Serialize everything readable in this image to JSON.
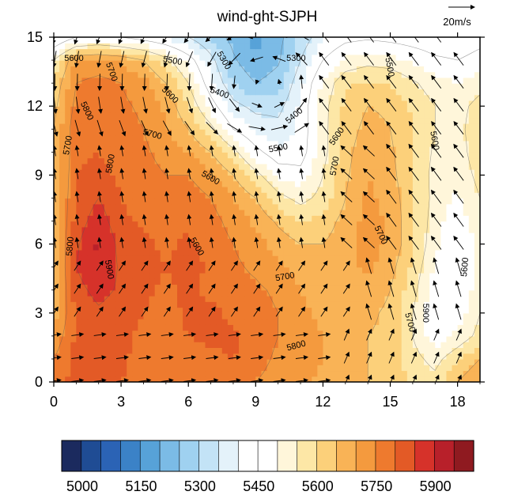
{
  "chart_data": {
    "type": "heatmap",
    "title": "wind-ght-SJPH",
    "xlabel": "",
    "ylabel": "",
    "xlim": [
      0,
      19
    ],
    "ylim": [
      0,
      15
    ],
    "x_ticks": [
      "0",
      "3",
      "6",
      "9",
      "12",
      "15",
      "18"
    ],
    "y_ticks": [
      "0",
      "3",
      "6",
      "9",
      "12",
      "15"
    ],
    "reference_vector": {
      "label": "20m/s",
      "magnitude": 20
    },
    "colorbar": {
      "levels": [
        5000,
        5050,
        5100,
        5150,
        5200,
        5250,
        5300,
        5350,
        5400,
        5450,
        5500,
        5550,
        5600,
        5650,
        5700,
        5750,
        5800,
        5850,
        5900,
        5950,
        6000
      ],
      "colors": [
        "#1b2a5e",
        "#1f4c94",
        "#2b63b5",
        "#3b82c7",
        "#57a2d8",
        "#7bbbe6",
        "#9fd1f0",
        "#c3e3f6",
        "#e4f2fa",
        "#ffffff",
        "#ffffff",
        "#fff6da",
        "#fde7a6",
        "#fcd07a",
        "#f9b356",
        "#f49a3e",
        "#ee7a2e",
        "#e35a26",
        "#d6322a",
        "#b8202a",
        "#8f1a20"
      ],
      "labels": [
        "5000",
        "5150",
        "5300",
        "5450",
        "5600",
        "5750",
        "5900"
      ]
    },
    "contour_labels": [
      "5300",
      "5400",
      "5500",
      "5600",
      "5700",
      "5800",
      "5900"
    ],
    "grid_field": [
      [
        5820,
        5870,
        5880,
        5850,
        5820,
        5800,
        5800,
        5820,
        5830,
        5800,
        5780,
        5760,
        5740,
        5720,
        5700,
        5680,
        5640,
        5620,
        5700,
        5760
      ],
      [
        5800,
        5870,
        5890,
        5860,
        5830,
        5810,
        5820,
        5840,
        5850,
        5820,
        5790,
        5770,
        5750,
        5720,
        5700,
        5680,
        5620,
        5580,
        5640,
        5700
      ],
      [
        5760,
        5860,
        5880,
        5860,
        5840,
        5820,
        5850,
        5860,
        5860,
        5830,
        5800,
        5780,
        5750,
        5720,
        5700,
        5690,
        5600,
        5520,
        5560,
        5620
      ],
      [
        5720,
        5860,
        5890,
        5870,
        5850,
        5830,
        5860,
        5860,
        5840,
        5820,
        5800,
        5760,
        5740,
        5720,
        5710,
        5690,
        5600,
        5500,
        5520,
        5600
      ],
      [
        5700,
        5880,
        5920,
        5890,
        5860,
        5840,
        5860,
        5840,
        5820,
        5810,
        5790,
        5750,
        5730,
        5730,
        5730,
        5700,
        5620,
        5520,
        5500,
        5580
      ],
      [
        5700,
        5900,
        5950,
        5890,
        5870,
        5850,
        5870,
        5840,
        5810,
        5790,
        5760,
        5730,
        5720,
        5740,
        5760,
        5720,
        5640,
        5540,
        5500,
        5560
      ],
      [
        5700,
        5890,
        5960,
        5880,
        5860,
        5840,
        5860,
        5830,
        5800,
        5770,
        5730,
        5700,
        5700,
        5730,
        5770,
        5740,
        5660,
        5560,
        5500,
        5560
      ],
      [
        5700,
        5870,
        5930,
        5860,
        5840,
        5830,
        5840,
        5820,
        5780,
        5740,
        5690,
        5650,
        5670,
        5720,
        5770,
        5740,
        5660,
        5570,
        5520,
        5580
      ],
      [
        5700,
        5860,
        5900,
        5850,
        5830,
        5820,
        5830,
        5800,
        5750,
        5700,
        5620,
        5580,
        5620,
        5700,
        5760,
        5730,
        5660,
        5580,
        5540,
        5600
      ],
      [
        5700,
        5850,
        5870,
        5840,
        5820,
        5800,
        5800,
        5760,
        5700,
        5620,
        5540,
        5520,
        5600,
        5690,
        5750,
        5720,
        5650,
        5580,
        5560,
        5620
      ],
      [
        5700,
        5840,
        5850,
        5830,
        5810,
        5780,
        5750,
        5700,
        5620,
        5520,
        5460,
        5470,
        5580,
        5680,
        5740,
        5710,
        5650,
        5590,
        5570,
        5640
      ],
      [
        5700,
        5840,
        5840,
        5820,
        5800,
        5760,
        5700,
        5620,
        5500,
        5440,
        5420,
        5460,
        5580,
        5670,
        5720,
        5700,
        5650,
        5600,
        5580,
        5640
      ],
      [
        5680,
        5820,
        5830,
        5810,
        5790,
        5740,
        5650,
        5530,
        5420,
        5380,
        5380,
        5460,
        5580,
        5660,
        5700,
        5690,
        5640,
        5600,
        5580,
        5620
      ],
      [
        5650,
        5800,
        5820,
        5800,
        5770,
        5700,
        5600,
        5460,
        5350,
        5300,
        5330,
        5440,
        5560,
        5640,
        5660,
        5650,
        5610,
        5570,
        5550,
        5580
      ],
      [
        5600,
        5750,
        5760,
        5740,
        5700,
        5620,
        5530,
        5420,
        5310,
        5250,
        5290,
        5400,
        5500,
        5560,
        5580,
        5570,
        5540,
        5510,
        5500,
        5520
      ],
      [
        5420,
        5500,
        5520,
        5500,
        5470,
        5440,
        5400,
        5340,
        5280,
        5240,
        5280,
        5360,
        5440,
        5480,
        5490,
        5480,
        5470,
        5460,
        5460,
        5480
      ]
    ],
    "wind_vectors_note": "wind arrows drawn at each grid point"
  }
}
